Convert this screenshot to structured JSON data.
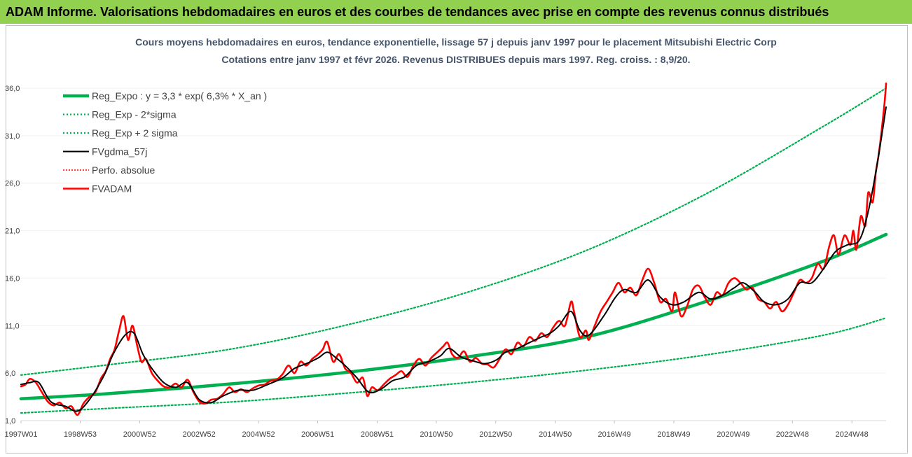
{
  "header": {
    "banner": "ADAM Informe. Valorisations hebdomadaires en euros et des courbes de tendances avec prise en compte des revenus connus distribués"
  },
  "chart_data": {
    "type": "line",
    "title_line1": "Cours moyens hebdomadaires en euros, tendance exponentielle, lissage 57 j depuis janv 1997 pour le placement Mitsubishi Electric Corp",
    "title_line2": "Cotations entre janv 1997 et févr 2026. Revenus DISTRIBUES depuis mars 1997. Reg. croiss. : 8,9/20.",
    "xlim": [
      1997.0,
      2026.1
    ],
    "ylim": [
      1.0,
      37.0
    ],
    "y_ticks": [
      1.0,
      6.0,
      11.0,
      16.0,
      21.0,
      26.0,
      31.0,
      36.0
    ],
    "y_tick_labels": [
      "1,0",
      "6,0",
      "11,0",
      "16,0",
      "21,0",
      "26,0",
      "31,0",
      "36,0"
    ],
    "x_ticks": [
      {
        "t": 1997.0,
        "label": "1997W01"
      },
      {
        "t": 1998.99,
        "label": "1998W53"
      },
      {
        "t": 2000.99,
        "label": "2000W52"
      },
      {
        "t": 2002.99,
        "label": "2002W52"
      },
      {
        "t": 2004.99,
        "label": "2004W52"
      },
      {
        "t": 2006.98,
        "label": "2006W51"
      },
      {
        "t": 2008.98,
        "label": "2008W51"
      },
      {
        "t": 2010.97,
        "label": "2010W50"
      },
      {
        "t": 2012.97,
        "label": "2012W50"
      },
      {
        "t": 2014.97,
        "label": "2014W50"
      },
      {
        "t": 2016.96,
        "label": "2016W49"
      },
      {
        "t": 2018.96,
        "label": "2018W49"
      },
      {
        "t": 2020.96,
        "label": "2020W49"
      },
      {
        "t": 2022.95,
        "label": "2022W48"
      },
      {
        "t": 2024.95,
        "label": "2024W48"
      }
    ],
    "legend_position": "top-left",
    "colors": {
      "reg": "#00b050",
      "sigma": "#00b050",
      "fvgdma": "#000000",
      "perfo": "#ff0000",
      "fvadam": "#ff0000"
    },
    "series": [
      {
        "key": "reg",
        "name": "Reg_Expo : y = 3,3 * exp( 6,3% *  X_an )",
        "points": [
          [
            1997.0,
            3.3
          ],
          [
            2000,
            3.85
          ],
          [
            2004,
            4.85
          ],
          [
            2008,
            6.1
          ],
          [
            2012,
            7.7
          ],
          [
            2016,
            9.8
          ],
          [
            2020,
            13.5
          ],
          [
            2024,
            17.8
          ],
          [
            2026.1,
            20.6
          ]
        ]
      },
      {
        "key": "sigma_low",
        "name": "Reg_Exp - 2*sigma",
        "points": [
          [
            1997.0,
            1.8
          ],
          [
            2000,
            2.3
          ],
          [
            2004,
            2.95
          ],
          [
            2008,
            3.9
          ],
          [
            2012,
            5.0
          ],
          [
            2016,
            6.3
          ],
          [
            2020,
            7.9
          ],
          [
            2024,
            10.0
          ],
          [
            2026.1,
            11.8
          ]
        ]
      },
      {
        "key": "sigma_high",
        "name": "Reg_Exp + 2 sigma",
        "points": [
          [
            1997.0,
            5.8
          ],
          [
            2000,
            6.9
          ],
          [
            2004,
            8.5
          ],
          [
            2008,
            11.1
          ],
          [
            2012,
            14.5
          ],
          [
            2016,
            18.9
          ],
          [
            2020,
            24.8
          ],
          [
            2024,
            32.0
          ],
          [
            2026.1,
            36.0
          ]
        ]
      },
      {
        "key": "fvgdma",
        "name": "FVgdma_57j",
        "points": [
          [
            1997.0,
            4.8
          ],
          [
            1997.3,
            5.0
          ],
          [
            1997.6,
            5.0
          ],
          [
            1998.0,
            3.0
          ],
          [
            1998.5,
            2.5
          ],
          [
            1998.9,
            2.0
          ],
          [
            1999.3,
            3.2
          ],
          [
            1999.8,
            5.8
          ],
          [
            2000.1,
            8.0
          ],
          [
            2000.5,
            10.0
          ],
          [
            2000.8,
            10.2
          ],
          [
            2001.1,
            8.0
          ],
          [
            2001.4,
            6.5
          ],
          [
            2001.8,
            5.0
          ],
          [
            2002.2,
            4.5
          ],
          [
            2002.6,
            5.0
          ],
          [
            2003.0,
            3.2
          ],
          [
            2003.4,
            2.9
          ],
          [
            2003.8,
            3.6
          ],
          [
            2004.3,
            4.2
          ],
          [
            2004.8,
            4.2
          ],
          [
            2005.3,
            4.8
          ],
          [
            2005.8,
            5.5
          ],
          [
            2006.2,
            6.5
          ],
          [
            2006.6,
            7.0
          ],
          [
            2007.0,
            7.6
          ],
          [
            2007.3,
            8.2
          ],
          [
            2007.6,
            7.6
          ],
          [
            2007.9,
            6.8
          ],
          [
            2008.3,
            5.5
          ],
          [
            2008.7,
            4.0
          ],
          [
            2009.1,
            4.3
          ],
          [
            2009.5,
            5.2
          ],
          [
            2009.9,
            5.6
          ],
          [
            2010.3,
            6.8
          ],
          [
            2010.7,
            7.2
          ],
          [
            2011.1,
            7.8
          ],
          [
            2011.4,
            8.6
          ],
          [
            2011.8,
            7.7
          ],
          [
            2012.2,
            7.3
          ],
          [
            2012.6,
            7.0
          ],
          [
            2013.0,
            7.4
          ],
          [
            2013.3,
            8.2
          ],
          [
            2013.7,
            8.6
          ],
          [
            2014.1,
            9.2
          ],
          [
            2014.5,
            9.8
          ],
          [
            2014.8,
            10.2
          ],
          [
            2015.1,
            11.0
          ],
          [
            2015.5,
            12.5
          ],
          [
            2015.8,
            10.5
          ],
          [
            2016.1,
            10.0
          ],
          [
            2016.6,
            12.0
          ],
          [
            2017.0,
            14.0
          ],
          [
            2017.3,
            14.8
          ],
          [
            2017.7,
            14.5
          ],
          [
            2018.1,
            15.8
          ],
          [
            2018.5,
            14.0
          ],
          [
            2018.9,
            13.2
          ],
          [
            2019.3,
            13.5
          ],
          [
            2019.8,
            14.5
          ],
          [
            2020.2,
            13.8
          ],
          [
            2020.6,
            14.2
          ],
          [
            2021.0,
            15.0
          ],
          [
            2021.3,
            15.5
          ],
          [
            2021.7,
            14.5
          ],
          [
            2022.0,
            13.5
          ],
          [
            2022.4,
            13.2
          ],
          [
            2022.8,
            13.8
          ],
          [
            2023.2,
            15.5
          ],
          [
            2023.6,
            15.5
          ],
          [
            2024.0,
            17.0
          ],
          [
            2024.4,
            18.8
          ],
          [
            2024.8,
            19.5
          ],
          [
            2025.2,
            20.0
          ],
          [
            2025.5,
            23.0
          ],
          [
            2025.8,
            28.0
          ],
          [
            2026.1,
            34.0
          ]
        ]
      },
      {
        "key": "perfo",
        "name": "Perfo. absolue",
        "points": []
      },
      {
        "key": "fvadam",
        "name": "FVADAM",
        "points": [
          [
            1997.0,
            4.6
          ],
          [
            1997.15,
            4.8
          ],
          [
            1997.3,
            5.4
          ],
          [
            1997.5,
            5.0
          ],
          [
            1997.7,
            4.0
          ],
          [
            1997.9,
            3.0
          ],
          [
            1998.1,
            2.6
          ],
          [
            1998.3,
            2.9
          ],
          [
            1998.5,
            2.3
          ],
          [
            1998.7,
            2.5
          ],
          [
            1998.9,
            1.6
          ],
          [
            1999.1,
            2.8
          ],
          [
            1999.3,
            3.5
          ],
          [
            1999.5,
            4.0
          ],
          [
            1999.7,
            5.5
          ],
          [
            1999.85,
            6.2
          ],
          [
            2000.0,
            7.5
          ],
          [
            2000.15,
            8.5
          ],
          [
            2000.3,
            10.5
          ],
          [
            2000.45,
            12.0
          ],
          [
            2000.6,
            9.5
          ],
          [
            2000.75,
            11.0
          ],
          [
            2000.9,
            9.0
          ],
          [
            2001.05,
            7.2
          ],
          [
            2001.2,
            7.5
          ],
          [
            2001.4,
            6.0
          ],
          [
            2001.6,
            5.2
          ],
          [
            2001.8,
            4.6
          ],
          [
            2002.0,
            4.5
          ],
          [
            2002.2,
            4.9
          ],
          [
            2002.4,
            4.5
          ],
          [
            2002.6,
            5.3
          ],
          [
            2002.8,
            4.0
          ],
          [
            2003.0,
            3.0
          ],
          [
            2003.2,
            2.8
          ],
          [
            2003.4,
            3.2
          ],
          [
            2003.6,
            3.3
          ],
          [
            2003.8,
            3.8
          ],
          [
            2004.0,
            4.5
          ],
          [
            2004.2,
            4.0
          ],
          [
            2004.4,
            4.3
          ],
          [
            2004.6,
            4.0
          ],
          [
            2004.8,
            4.4
          ],
          [
            2005.0,
            4.7
          ],
          [
            2005.2,
            4.8
          ],
          [
            2005.4,
            5.2
          ],
          [
            2005.6,
            5.3
          ],
          [
            2005.8,
            5.9
          ],
          [
            2006.0,
            6.8
          ],
          [
            2006.2,
            6.0
          ],
          [
            2006.4,
            7.2
          ],
          [
            2006.6,
            6.8
          ],
          [
            2006.8,
            7.5
          ],
          [
            2007.0,
            8.0
          ],
          [
            2007.15,
            8.5
          ],
          [
            2007.3,
            9.3
          ],
          [
            2007.5,
            7.2
          ],
          [
            2007.7,
            8.0
          ],
          [
            2007.9,
            6.5
          ],
          [
            2008.1,
            6.0
          ],
          [
            2008.3,
            5.0
          ],
          [
            2008.5,
            5.5
          ],
          [
            2008.65,
            3.6
          ],
          [
            2008.8,
            4.5
          ],
          [
            2009.0,
            4.2
          ],
          [
            2009.2,
            4.8
          ],
          [
            2009.4,
            5.4
          ],
          [
            2009.6,
            5.8
          ],
          [
            2009.8,
            6.2
          ],
          [
            2010.0,
            5.6
          ],
          [
            2010.2,
            6.8
          ],
          [
            2010.4,
            7.5
          ],
          [
            2010.6,
            6.8
          ],
          [
            2010.8,
            7.6
          ],
          [
            2011.0,
            8.2
          ],
          [
            2011.2,
            8.8
          ],
          [
            2011.35,
            9.2
          ],
          [
            2011.5,
            8.0
          ],
          [
            2011.7,
            7.6
          ],
          [
            2011.9,
            8.3
          ],
          [
            2012.1,
            7.2
          ],
          [
            2012.3,
            7.6
          ],
          [
            2012.5,
            7.0
          ],
          [
            2012.7,
            6.9
          ],
          [
            2012.9,
            6.6
          ],
          [
            2013.1,
            7.5
          ],
          [
            2013.3,
            8.5
          ],
          [
            2013.5,
            8.0
          ],
          [
            2013.7,
            9.2
          ],
          [
            2013.9,
            8.8
          ],
          [
            2014.1,
            9.8
          ],
          [
            2014.3,
            9.4
          ],
          [
            2014.5,
            10.2
          ],
          [
            2014.7,
            9.8
          ],
          [
            2014.9,
            10.8
          ],
          [
            2015.1,
            11.5
          ],
          [
            2015.3,
            11.0
          ],
          [
            2015.5,
            13.5
          ],
          [
            2015.6,
            12.5
          ],
          [
            2015.8,
            9.8
          ],
          [
            2016.0,
            10.5
          ],
          [
            2016.1,
            9.5
          ],
          [
            2016.3,
            11.0
          ],
          [
            2016.5,
            12.5
          ],
          [
            2016.7,
            13.5
          ],
          [
            2016.9,
            14.5
          ],
          [
            2017.1,
            15.5
          ],
          [
            2017.3,
            14.5
          ],
          [
            2017.5,
            15.0
          ],
          [
            2017.7,
            14.2
          ],
          [
            2017.9,
            15.8
          ],
          [
            2018.1,
            17.0
          ],
          [
            2018.3,
            15.5
          ],
          [
            2018.5,
            13.5
          ],
          [
            2018.7,
            13.8
          ],
          [
            2018.9,
            12.5
          ],
          [
            2019.0,
            14.5
          ],
          [
            2019.2,
            12.0
          ],
          [
            2019.4,
            13.0
          ],
          [
            2019.6,
            14.8
          ],
          [
            2019.8,
            15.2
          ],
          [
            2020.0,
            14.0
          ],
          [
            2020.2,
            13.2
          ],
          [
            2020.4,
            14.5
          ],
          [
            2020.6,
            14.2
          ],
          [
            2020.8,
            15.5
          ],
          [
            2021.0,
            16.0
          ],
          [
            2021.2,
            15.5
          ],
          [
            2021.4,
            14.8
          ],
          [
            2021.6,
            15.0
          ],
          [
            2021.8,
            13.8
          ],
          [
            2022.0,
            13.5
          ],
          [
            2022.2,
            12.8
          ],
          [
            2022.4,
            13.5
          ],
          [
            2022.6,
            12.5
          ],
          [
            2022.8,
            13.2
          ],
          [
            2023.0,
            14.5
          ],
          [
            2023.2,
            15.8
          ],
          [
            2023.4,
            15.5
          ],
          [
            2023.6,
            16.0
          ],
          [
            2023.8,
            17.5
          ],
          [
            2024.0,
            17.0
          ],
          [
            2024.2,
            19.5
          ],
          [
            2024.35,
            20.5
          ],
          [
            2024.5,
            18.5
          ],
          [
            2024.7,
            20.5
          ],
          [
            2024.9,
            19.5
          ],
          [
            2025.0,
            21.0
          ],
          [
            2025.1,
            19.0
          ],
          [
            2025.25,
            22.5
          ],
          [
            2025.4,
            21.5
          ],
          [
            2025.5,
            25.0
          ],
          [
            2025.65,
            24.0
          ],
          [
            2025.75,
            27.0
          ],
          [
            2025.85,
            29.0
          ],
          [
            2025.95,
            31.5
          ],
          [
            2026.05,
            34.5
          ],
          [
            2026.1,
            36.5
          ]
        ]
      }
    ]
  }
}
